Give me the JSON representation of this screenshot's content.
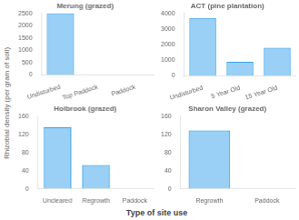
{
  "chart_data": [
    {
      "type": "bar",
      "title": "Merung (grazed)",
      "categories": [
        "Undisturbed",
        "Top Paddock",
        "Paddock"
      ],
      "values": [
        2500,
        0,
        0
      ],
      "ylim": [
        0,
        2500
      ],
      "yticks": [
        0,
        500,
        1000,
        1500,
        2000,
        2500
      ],
      "grid": false
    },
    {
      "type": "bar",
      "title": "ACT (pine plantation)",
      "categories": [
        "Undisturbed",
        "5 Year Old",
        "15 Year Old"
      ],
      "values": [
        3700,
        900,
        1800
      ],
      "ylim": [
        0,
        4000
      ],
      "yticks": [
        0,
        1000,
        2000,
        3000,
        4000
      ],
      "grid": false
    },
    {
      "type": "bar",
      "title": "Holbrook (grazed)",
      "categories": [
        "Uncleared",
        "Regrowth",
        "Paddock"
      ],
      "values": [
        135,
        52,
        0
      ],
      "ylim": [
        0,
        160
      ],
      "yticks": [
        0,
        40,
        80,
        120,
        160
      ],
      "grid": false
    },
    {
      "type": "bar",
      "title": "Sharon Valley (grazed)",
      "categories": [
        "Regrowth",
        "Paddock"
      ],
      "values": [
        128,
        0
      ],
      "ylim": [
        0,
        160
      ],
      "yticks": [
        0,
        40,
        80,
        120,
        160
      ],
      "grid": false
    }
  ],
  "ylabel": "Rhizobial density (per gram of soil)",
  "xlabel": "Type of site use"
}
